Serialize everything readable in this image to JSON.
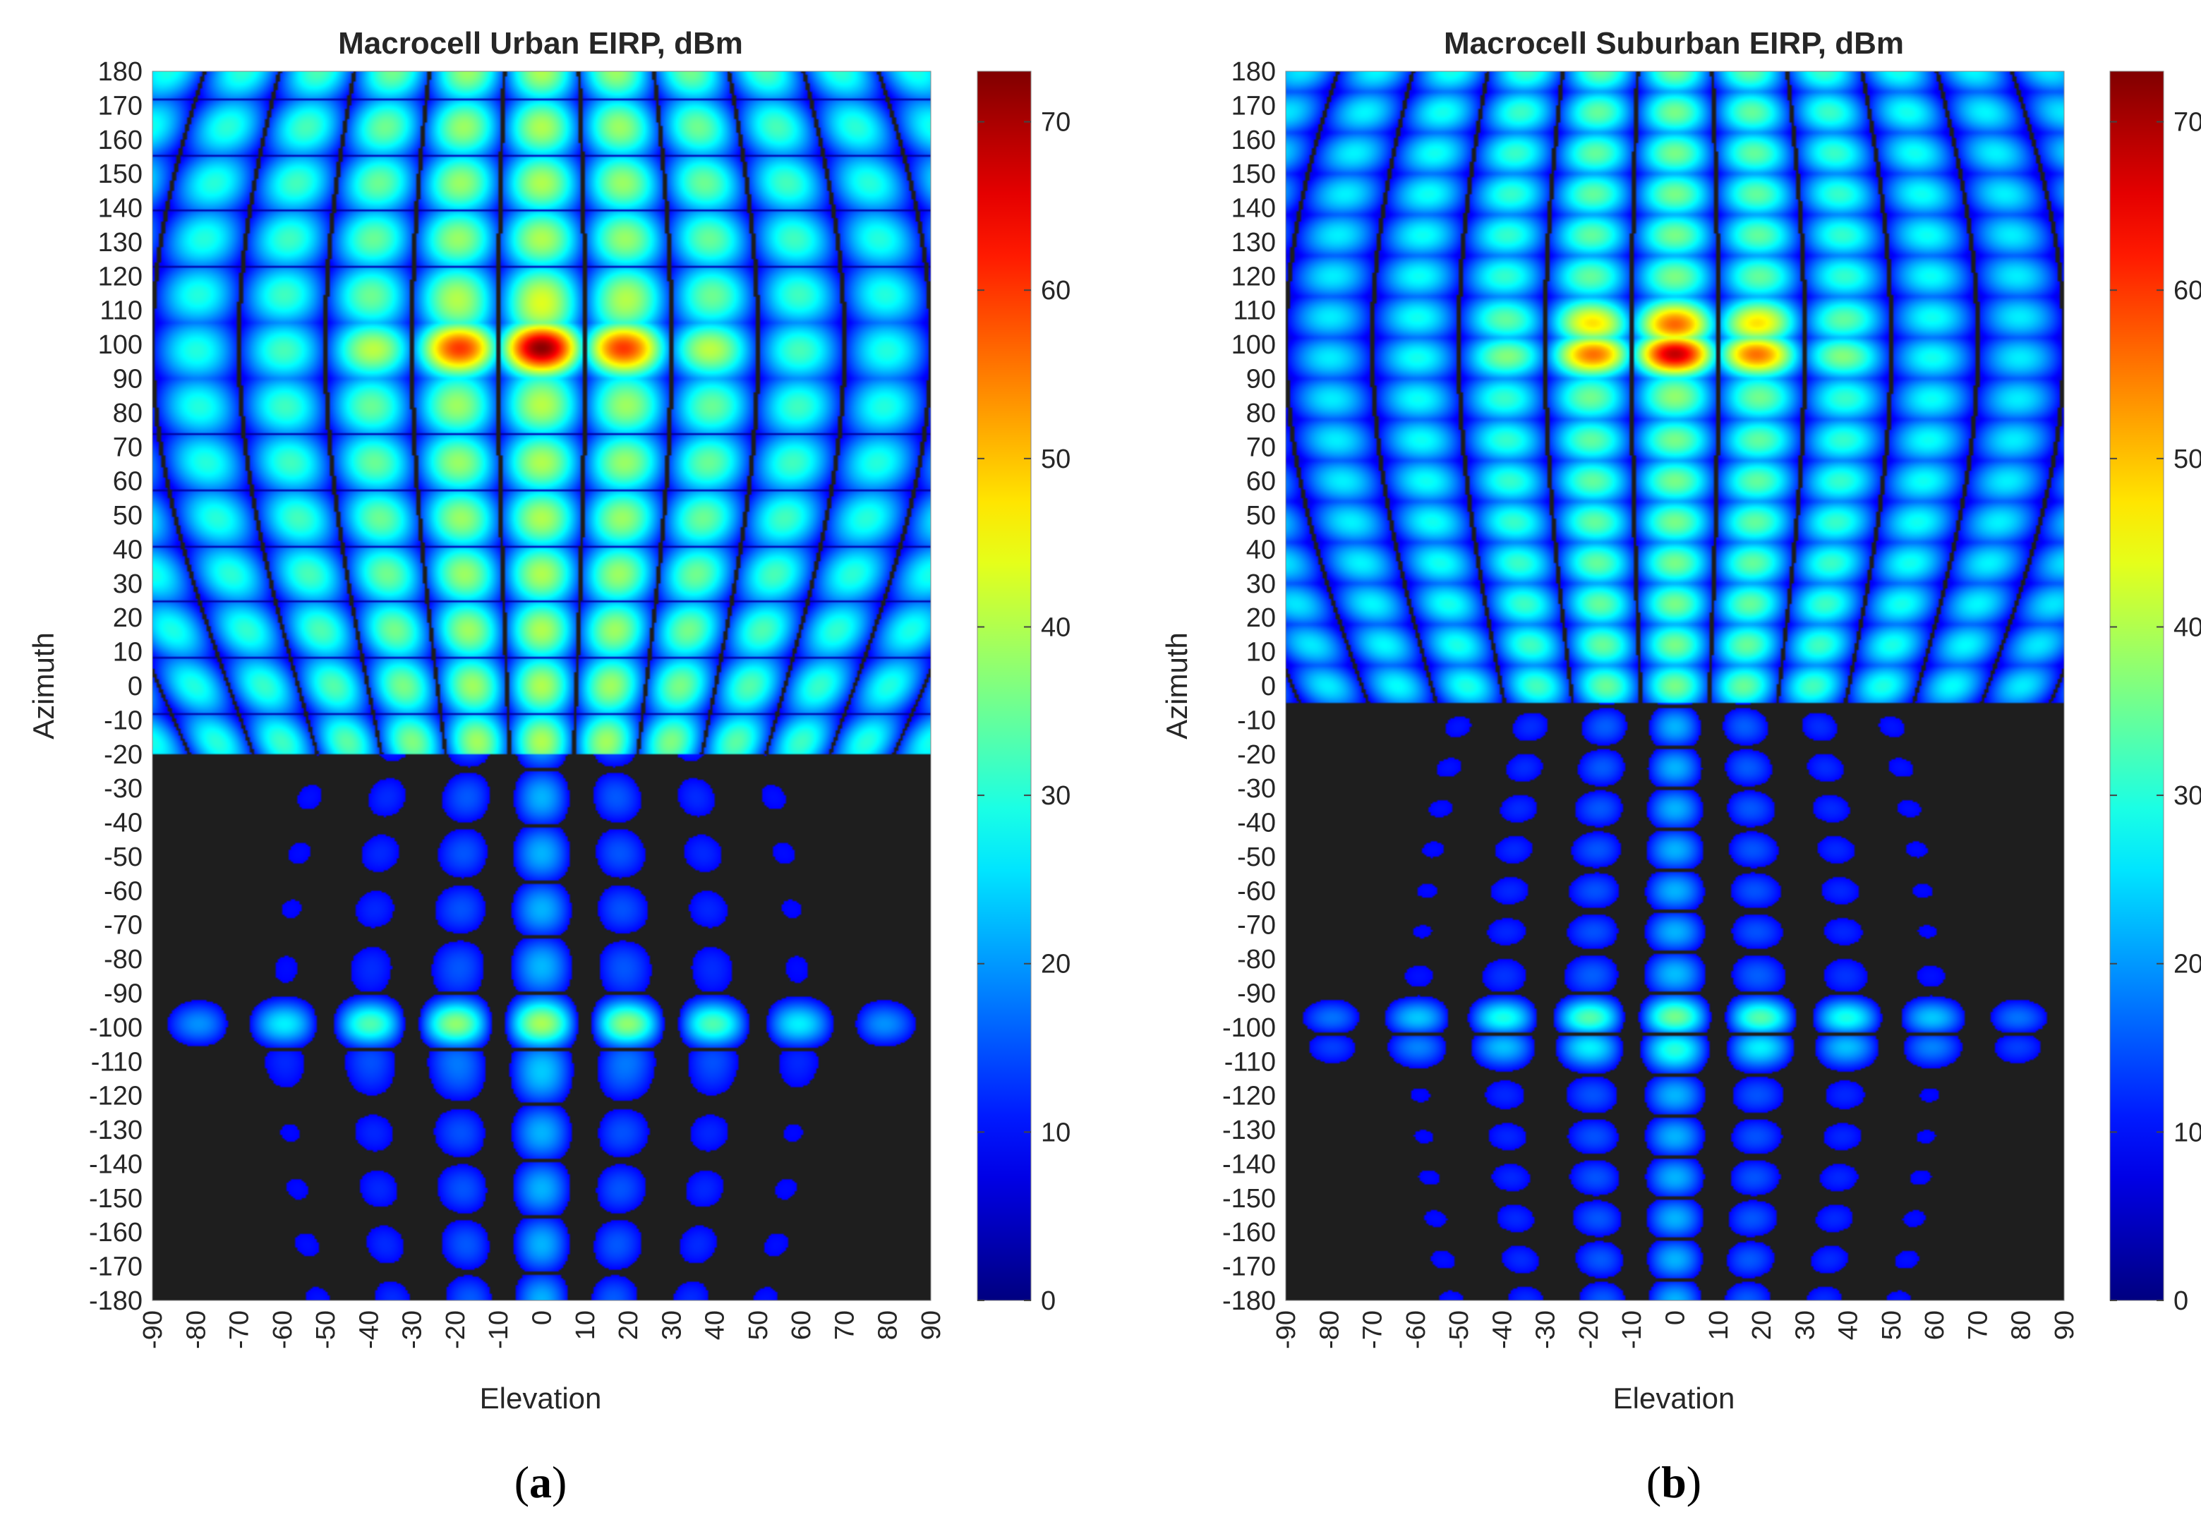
{
  "chart_data": [
    {
      "type": "heatmap",
      "panel": "a",
      "panel_label": "(a)",
      "panel_letter": "a",
      "title": "Macrocell Urban EIRP, dBm",
      "xlabel": "Elevation",
      "ylabel": "Azimuth",
      "xlim": [
        -90,
        90
      ],
      "ylim": [
        -180,
        180
      ],
      "xticks": [
        -90,
        -80,
        -70,
        -60,
        -50,
        -40,
        -30,
        -20,
        -10,
        0,
        10,
        20,
        30,
        40,
        50,
        60,
        70,
        80,
        90
      ],
      "yticks": [
        180,
        170,
        160,
        150,
        140,
        130,
        120,
        110,
        100,
        90,
        80,
        70,
        60,
        50,
        40,
        30,
        20,
        10,
        0,
        -10,
        -20,
        -30,
        -40,
        -50,
        -60,
        -70,
        -80,
        -90,
        -100,
        -110,
        -120,
        -130,
        -140,
        -150,
        -160,
        -170,
        -180
      ],
      "colorbar": {
        "min": 0,
        "max": 73,
        "ticks": [
          0,
          10,
          20,
          30,
          40,
          50,
          60,
          70
        ],
        "colormap": "jet",
        "null_color": "#1e1e1e"
      },
      "peak_dbm": 73,
      "main_beam_azimuth": 100,
      "main_beam_elevation": 0,
      "back_lobe_azimuth": -100,
      "back_lobe_dbm": 40,
      "broadside_dbm": 34,
      "lower_null_band_azimuth": -20,
      "vertical_lobe_elevations": [
        -60,
        -40,
        -20,
        0,
        20,
        40,
        60
      ],
      "horizontal_rows": 22
    },
    {
      "type": "heatmap",
      "panel": "b",
      "panel_label": "(b)",
      "panel_letter": "b",
      "title": "Macrocell Suburban EIRP, dBm",
      "xlabel": "Elevation",
      "ylabel": "Azimuth",
      "xlim": [
        -90,
        90
      ],
      "ylim": [
        -180,
        180
      ],
      "xticks": [
        -90,
        -80,
        -70,
        -60,
        -50,
        -40,
        -30,
        -20,
        -10,
        0,
        10,
        20,
        30,
        40,
        50,
        60,
        70,
        80,
        90
      ],
      "yticks": [
        180,
        170,
        160,
        150,
        140,
        130,
        120,
        110,
        100,
        90,
        80,
        70,
        60,
        50,
        40,
        30,
        20,
        10,
        0,
        -10,
        -20,
        -30,
        -40,
        -50,
        -60,
        -70,
        -80,
        -90,
        -100,
        -110,
        -120,
        -130,
        -140,
        -150,
        -160,
        -170,
        -180
      ],
      "colorbar": {
        "min": 0,
        "max": 73,
        "ticks": [
          0,
          10,
          20,
          30,
          40,
          50,
          60,
          70
        ],
        "colormap": "jet",
        "null_color": "#1e1e1e"
      },
      "peak_dbm": 73,
      "main_beam_azimuth": 100,
      "main_beam_elevation": 0,
      "back_lobe_azimuth": -100,
      "back_lobe_dbm": 38,
      "broadside_dbm": 30,
      "lower_null_band_azimuth": -5,
      "vertical_lobe_elevations": [
        -60,
        -40,
        -20,
        0,
        20,
        40,
        60
      ],
      "horizontal_rows": 30
    }
  ]
}
